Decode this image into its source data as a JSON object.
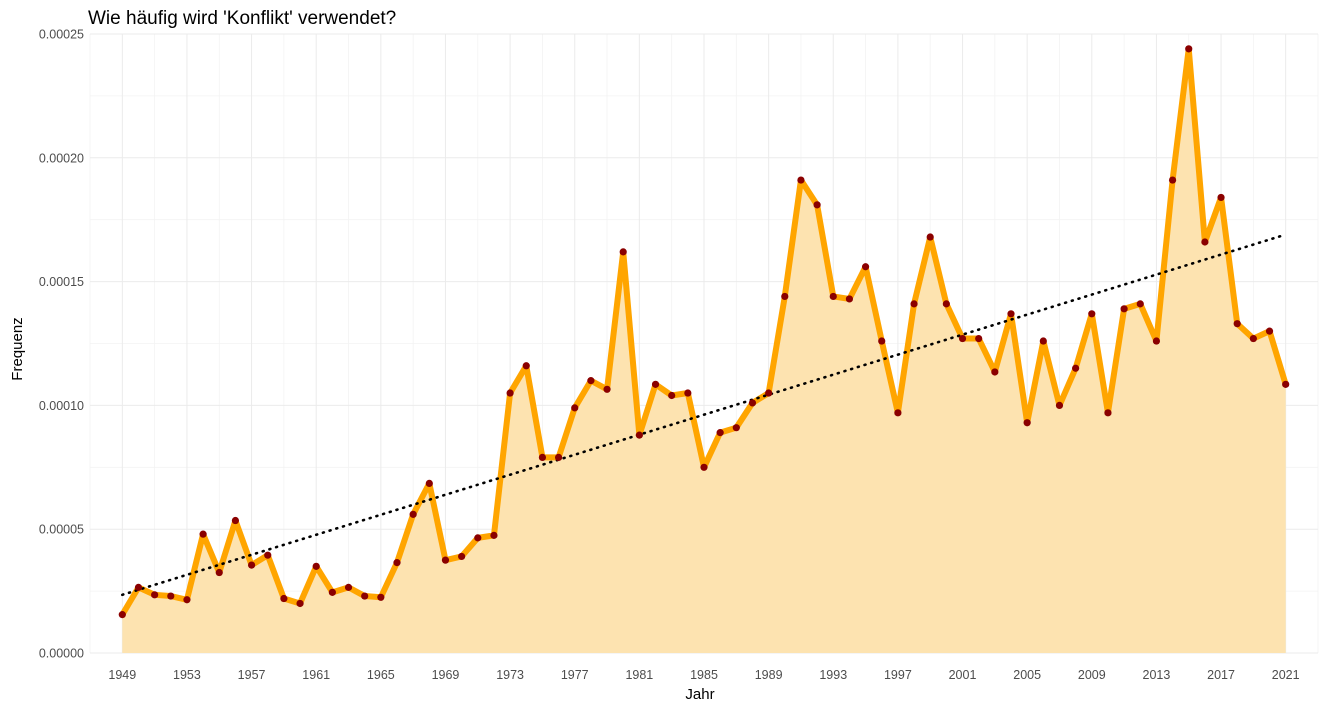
{
  "chart_data": {
    "type": "area",
    "title": "Wie häufig wird 'Konflikt' verwendet?",
    "xlabel": "Jahr",
    "ylabel": "Frequenz",
    "xlim": [
      1947,
      2023
    ],
    "ylim": [
      0,
      0.00025
    ],
    "x_ticks": [
      1949,
      1953,
      1957,
      1961,
      1965,
      1969,
      1973,
      1977,
      1981,
      1985,
      1989,
      1993,
      1997,
      2001,
      2005,
      2009,
      2013,
      2017,
      2021
    ],
    "y_ticks": [
      0,
      5e-05,
      0.0001,
      0.00015,
      0.0002,
      0.00025
    ],
    "y_tick_labels": [
      "0.00000",
      "0.00005",
      "0.00010",
      "0.00015",
      "0.00020",
      "0.00025"
    ],
    "grid": true,
    "legend": "none",
    "colors": {
      "line": "#FFA500",
      "fill": "#FDE3B0",
      "points": "#8B0000",
      "trend": "#000000"
    },
    "series": [
      {
        "x": [
          1949,
          1950,
          1951,
          1952,
          1953,
          1954,
          1955,
          1956,
          1957,
          1958,
          1959,
          1960,
          1961,
          1962,
          1963,
          1964,
          1965,
          1966,
          1967,
          1968,
          1969,
          1970,
          1971,
          1972,
          1973,
          1974,
          1975,
          1976,
          1977,
          1978,
          1979,
          1980,
          1981,
          1982,
          1983,
          1984,
          1985,
          1986,
          1987,
          1988,
          1989,
          1990,
          1991,
          1992,
          1993,
          1994,
          1995,
          1996,
          1997,
          1998,
          1999,
          2000,
          2001,
          2002,
          2003,
          2004,
          2005,
          2006,
          2007,
          2008,
          2009,
          2010,
          2011,
          2012,
          2013,
          2014,
          2015,
          2016,
          2017,
          2018,
          2019,
          2020,
          2021
        ],
        "values": [
          1.55e-05,
          2.65e-05,
          2.35e-05,
          2.3e-05,
          2.15e-05,
          4.8e-05,
          3.25e-05,
          5.35e-05,
          3.55e-05,
          3.95e-05,
          2.2e-05,
          2e-05,
          3.5e-05,
          2.45e-05,
          2.65e-05,
          2.3e-05,
          2.25e-05,
          3.65e-05,
          5.6e-05,
          6.85e-05,
          3.75e-05,
          3.9e-05,
          4.65e-05,
          4.75e-05,
          0.000105,
          0.000116,
          7.9e-05,
          7.9e-05,
          9.9e-05,
          0.00011,
          0.0001065,
          0.000162,
          8.8e-05,
          0.0001085,
          0.000104,
          0.000105,
          7.5e-05,
          8.9e-05,
          9.1e-05,
          0.000101,
          0.000105,
          0.000144,
          0.000191,
          0.000181,
          0.000144,
          0.000143,
          0.000156,
          0.000126,
          9.7e-05,
          0.000141,
          0.000168,
          0.000141,
          0.000127,
          0.000127,
          0.0001135,
          0.000137,
          9.3e-05,
          0.000126,
          0.0001,
          0.000115,
          0.000137,
          9.7e-05,
          0.000139,
          0.000141,
          0.000126,
          0.000191,
          0.000244,
          0.000166,
          0.000184,
          0.000133,
          0.000127,
          0.00013,
          0.0001085
        ]
      }
    ],
    "trend": {
      "x": [
        1949,
        2021
      ],
      "y": [
        2.35e-05,
        0.000169
      ]
    }
  }
}
